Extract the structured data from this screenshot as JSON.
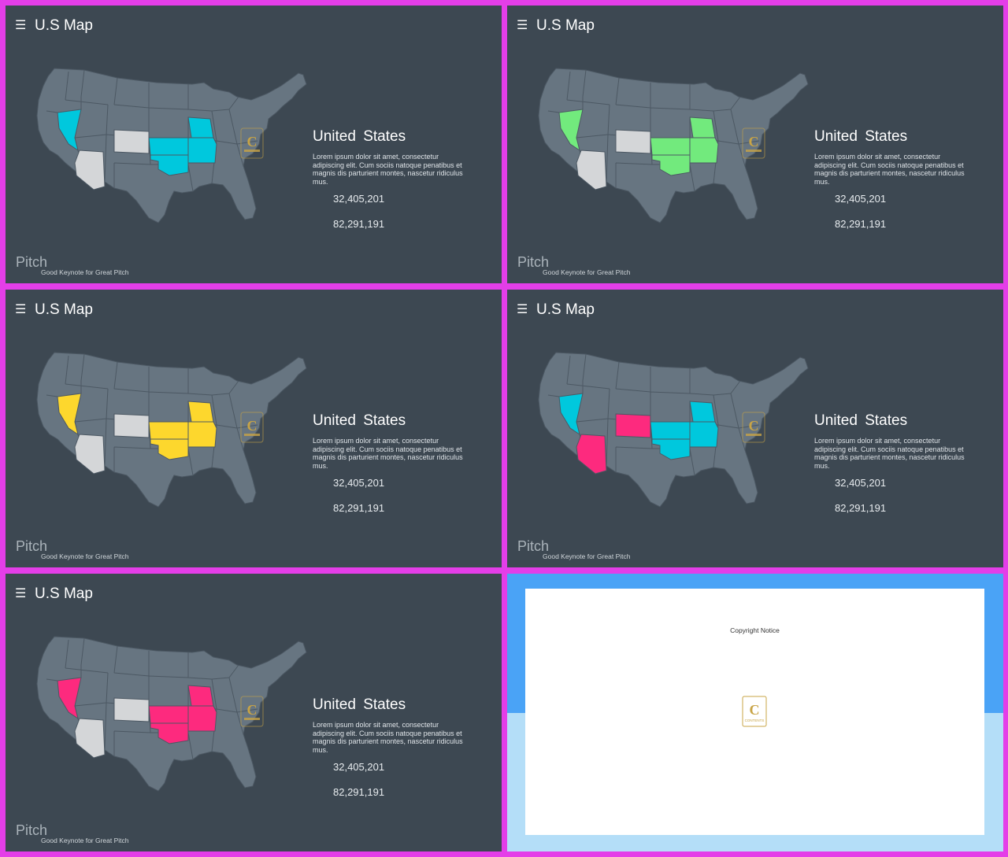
{
  "slides": [
    {
      "title": "U.S Map",
      "country": "United  States",
      "description": "Lorem ipsum dolor sit amet, consectetur adipiscing elit. Cum sociis natoque penatibus et magnis dis parturient montes, nascetur ridiculus mus.",
      "stat1": "32,405,201",
      "stat2": "82,291,191",
      "brand": "Pitch",
      "tagline": "Good Keynote for Great Pitch",
      "highlight_primary": "#00c8dd",
      "highlight_secondary": "#d4d6d8"
    },
    {
      "title": "U.S Map",
      "country": "United  States",
      "description": "Lorem ipsum dolor sit amet, consectetur adipiscing elit. Cum sociis natoque penatibus et magnis dis parturient montes, nascetur ridiculus mus.",
      "stat1": "32,405,201",
      "stat2": "82,291,191",
      "brand": "Pitch",
      "tagline": "Good Keynote for Great Pitch",
      "highlight_primary": "#72ea7d",
      "highlight_secondary": "#d4d6d8"
    },
    {
      "title": "U.S Map",
      "country": "United  States",
      "description": "Lorem ipsum dolor sit amet, consectetur adipiscing elit. Cum sociis natoque penatibus et magnis dis parturient montes, nascetur ridiculus mus.",
      "stat1": "32,405,201",
      "stat2": "82,291,191",
      "brand": "Pitch",
      "tagline": "Good Keynote for Great Pitch",
      "highlight_primary": "#fdd72d",
      "highlight_secondary": "#d4d6d8"
    },
    {
      "title": "U.S Map",
      "country": "United  States",
      "description": "Lorem ipsum dolor sit amet, consectetur adipiscing elit. Cum sociis natoque penatibus et magnis dis parturient montes, nascetur ridiculus mus.",
      "stat1": "32,405,201",
      "stat2": "82,291,191",
      "brand": "Pitch",
      "tagline": "Good Keynote for Great Pitch",
      "highlight_primary": "#00c8dd",
      "highlight_secondary": "#fd2a7e"
    },
    {
      "title": "U.S Map",
      "country": "United  States",
      "description": "Lorem ipsum dolor sit amet, consectetur adipiscing elit. Cum sociis natoque penatibus et magnis dis parturient montes, nascetur ridiculus mus.",
      "stat1": "32,405,201",
      "stat2": "82,291,191",
      "brand": "Pitch",
      "tagline": "Good Keynote for Great Pitch",
      "highlight_primary": "#fd2a7e",
      "highlight_secondary": "#d4d6d8"
    }
  ],
  "copyright": {
    "title": "Copyright Notice",
    "logo_letter": "C",
    "logo_text": "CONTENTS"
  },
  "colors": {
    "map_base": "#677581",
    "map_border": "#4c5863",
    "logo_gold": "#c8a446"
  }
}
